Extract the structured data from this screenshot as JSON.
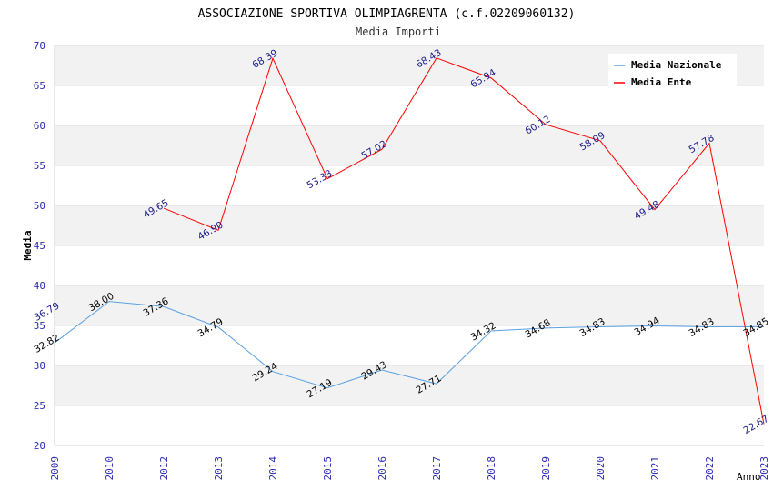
{
  "chart_data": {
    "type": "line",
    "title": "ASSOCIAZIONE SPORTIVA OLIMPIAGRENTA (c.f.02209060132)",
    "subtitle": "Media Importi",
    "xlabel": "Anno",
    "ylabel": "Media",
    "ylim": [
      20,
      70
    ],
    "yticks": [
      "20",
      "25",
      "30",
      "35",
      "40",
      "45",
      "50",
      "55",
      "60",
      "65",
      "70"
    ],
    "categories": [
      "2009",
      "2010",
      "2012",
      "2013",
      "2014",
      "2015",
      "2016",
      "2017",
      "2018",
      "2019",
      "2020",
      "2021",
      "2022",
      "2023"
    ],
    "grid": true,
    "legend_position": "top-right",
    "series": [
      {
        "name": "Media Nazionale",
        "color": "#5aa0e0",
        "label_color": "#000000",
        "values": [
          32.82,
          38.0,
          37.36,
          34.79,
          29.24,
          27.19,
          29.43,
          27.71,
          34.32,
          34.68,
          34.83,
          34.94,
          34.83,
          34.85
        ],
        "labels": [
          "32.82",
          "38.00",
          "37.36",
          "34.79",
          "29.24",
          "27.19",
          "29.43",
          "27.71",
          "34.32",
          "34.68",
          "34.83",
          "34.94",
          "34.83",
          "34.85"
        ]
      },
      {
        "name": "Media Ente",
        "color": "#ff0000",
        "label_color": "#1a1a8c",
        "values": [
          null,
          null,
          49.65,
          46.9,
          68.39,
          53.33,
          57.02,
          68.43,
          65.94,
          60.12,
          58.09,
          49.48,
          57.78,
          22.67
        ],
        "labels": [
          "",
          "",
          "49.65",
          "46.90",
          "68.39",
          "53.33",
          "57.02",
          "68.43",
          "65.94",
          "60.12",
          "58.09",
          "49.48",
          "57.78",
          "22.67"
        ]
      }
    ],
    "extra_labels": [
      {
        "text": "36.79",
        "category": "2009",
        "value": 36.79,
        "color": "#1a1a8c"
      }
    ]
  }
}
